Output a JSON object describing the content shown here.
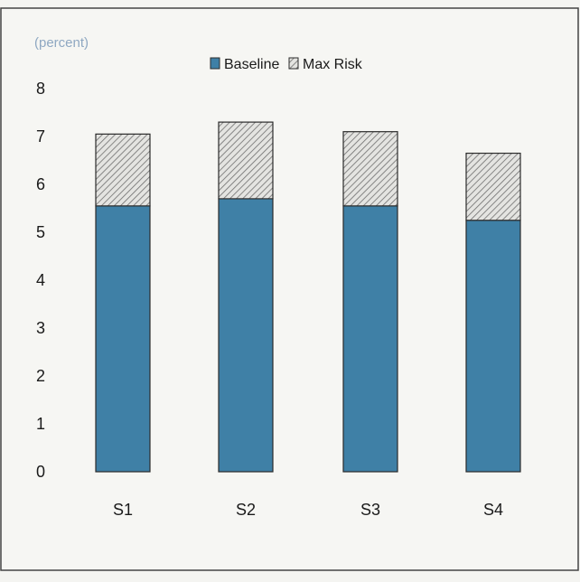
{
  "chart_data": {
    "type": "bar",
    "stacked": true,
    "unit_label": "(percent)",
    "categories": [
      "S1",
      "S2",
      "S3",
      "S4"
    ],
    "series": [
      {
        "name": "Baseline",
        "values": [
          5.55,
          5.7,
          5.55,
          5.25
        ],
        "color": "#3f80a6",
        "pattern": "solid"
      },
      {
        "name": "Max Risk",
        "values": [
          1.5,
          1.6,
          1.55,
          1.4
        ],
        "color": "#d9d9d6",
        "pattern": "hatched"
      }
    ],
    "yticks": [
      0,
      1,
      2,
      3,
      4,
      5,
      6,
      7,
      8
    ],
    "ylim": [
      0,
      8
    ],
    "grid": false,
    "legend_position": "top-center"
  }
}
